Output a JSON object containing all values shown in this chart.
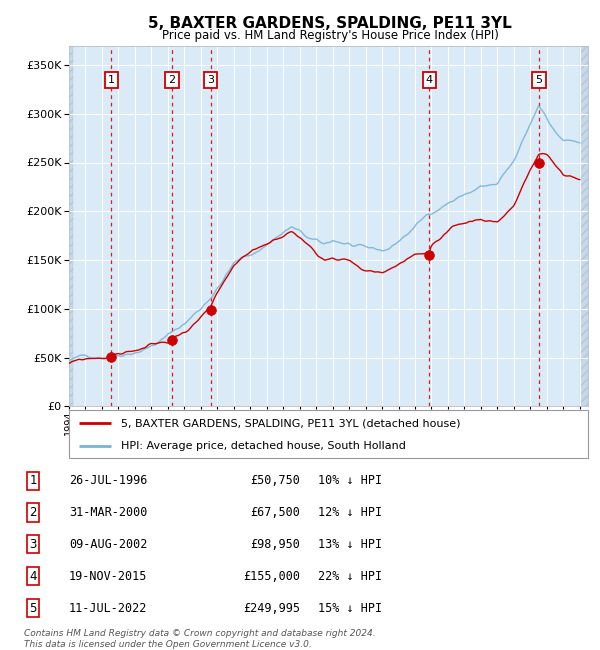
{
  "title": "5, BAXTER GARDENS, SPALDING, PE11 3YL",
  "subtitle": "Price paid vs. HM Land Registry's House Price Index (HPI)",
  "legend_line1": "5, BAXTER GARDENS, SPALDING, PE11 3YL (detached house)",
  "legend_line2": "HPI: Average price, detached house, South Holland",
  "footer_line1": "Contains HM Land Registry data © Crown copyright and database right 2024.",
  "footer_line2": "This data is licensed under the Open Government Licence v3.0.",
  "sales": [
    {
      "num": 1,
      "x_year": 1996.57,
      "price": 50750
    },
    {
      "num": 2,
      "x_year": 2000.25,
      "price": 67500
    },
    {
      "num": 3,
      "x_year": 2002.61,
      "price": 98950
    },
    {
      "num": 4,
      "x_year": 2015.88,
      "price": 155000
    },
    {
      "num": 5,
      "x_year": 2022.53,
      "price": 249995
    }
  ],
  "table_rows": [
    {
      "num": 1,
      "date_str": "26-JUL-1996",
      "price_str": "£50,750",
      "pct_str": "10% ↓ HPI"
    },
    {
      "num": 2,
      "date_str": "31-MAR-2000",
      "price_str": "£67,500",
      "pct_str": "12% ↓ HPI"
    },
    {
      "num": 3,
      "date_str": "09-AUG-2002",
      "price_str": "£98,950",
      "pct_str": "13% ↓ HPI"
    },
    {
      "num": 4,
      "date_str": "19-NOV-2015",
      "price_str": "£155,000",
      "pct_str": "22% ↓ HPI"
    },
    {
      "num": 5,
      "date_str": "11-JUL-2022",
      "price_str": "£249,995",
      "pct_str": "15% ↓ HPI"
    }
  ],
  "hpi_color": "#7ab3d4",
  "sale_color": "#cc0000",
  "background_plot": "#daeaf7",
  "background_hatch": "#c5d9ea",
  "grid_color": "#ffffff",
  "dashed_color": "#cc0000",
  "xmin": 1994.0,
  "xmax": 2025.5,
  "ymin": 0,
  "ymax": 370000
}
